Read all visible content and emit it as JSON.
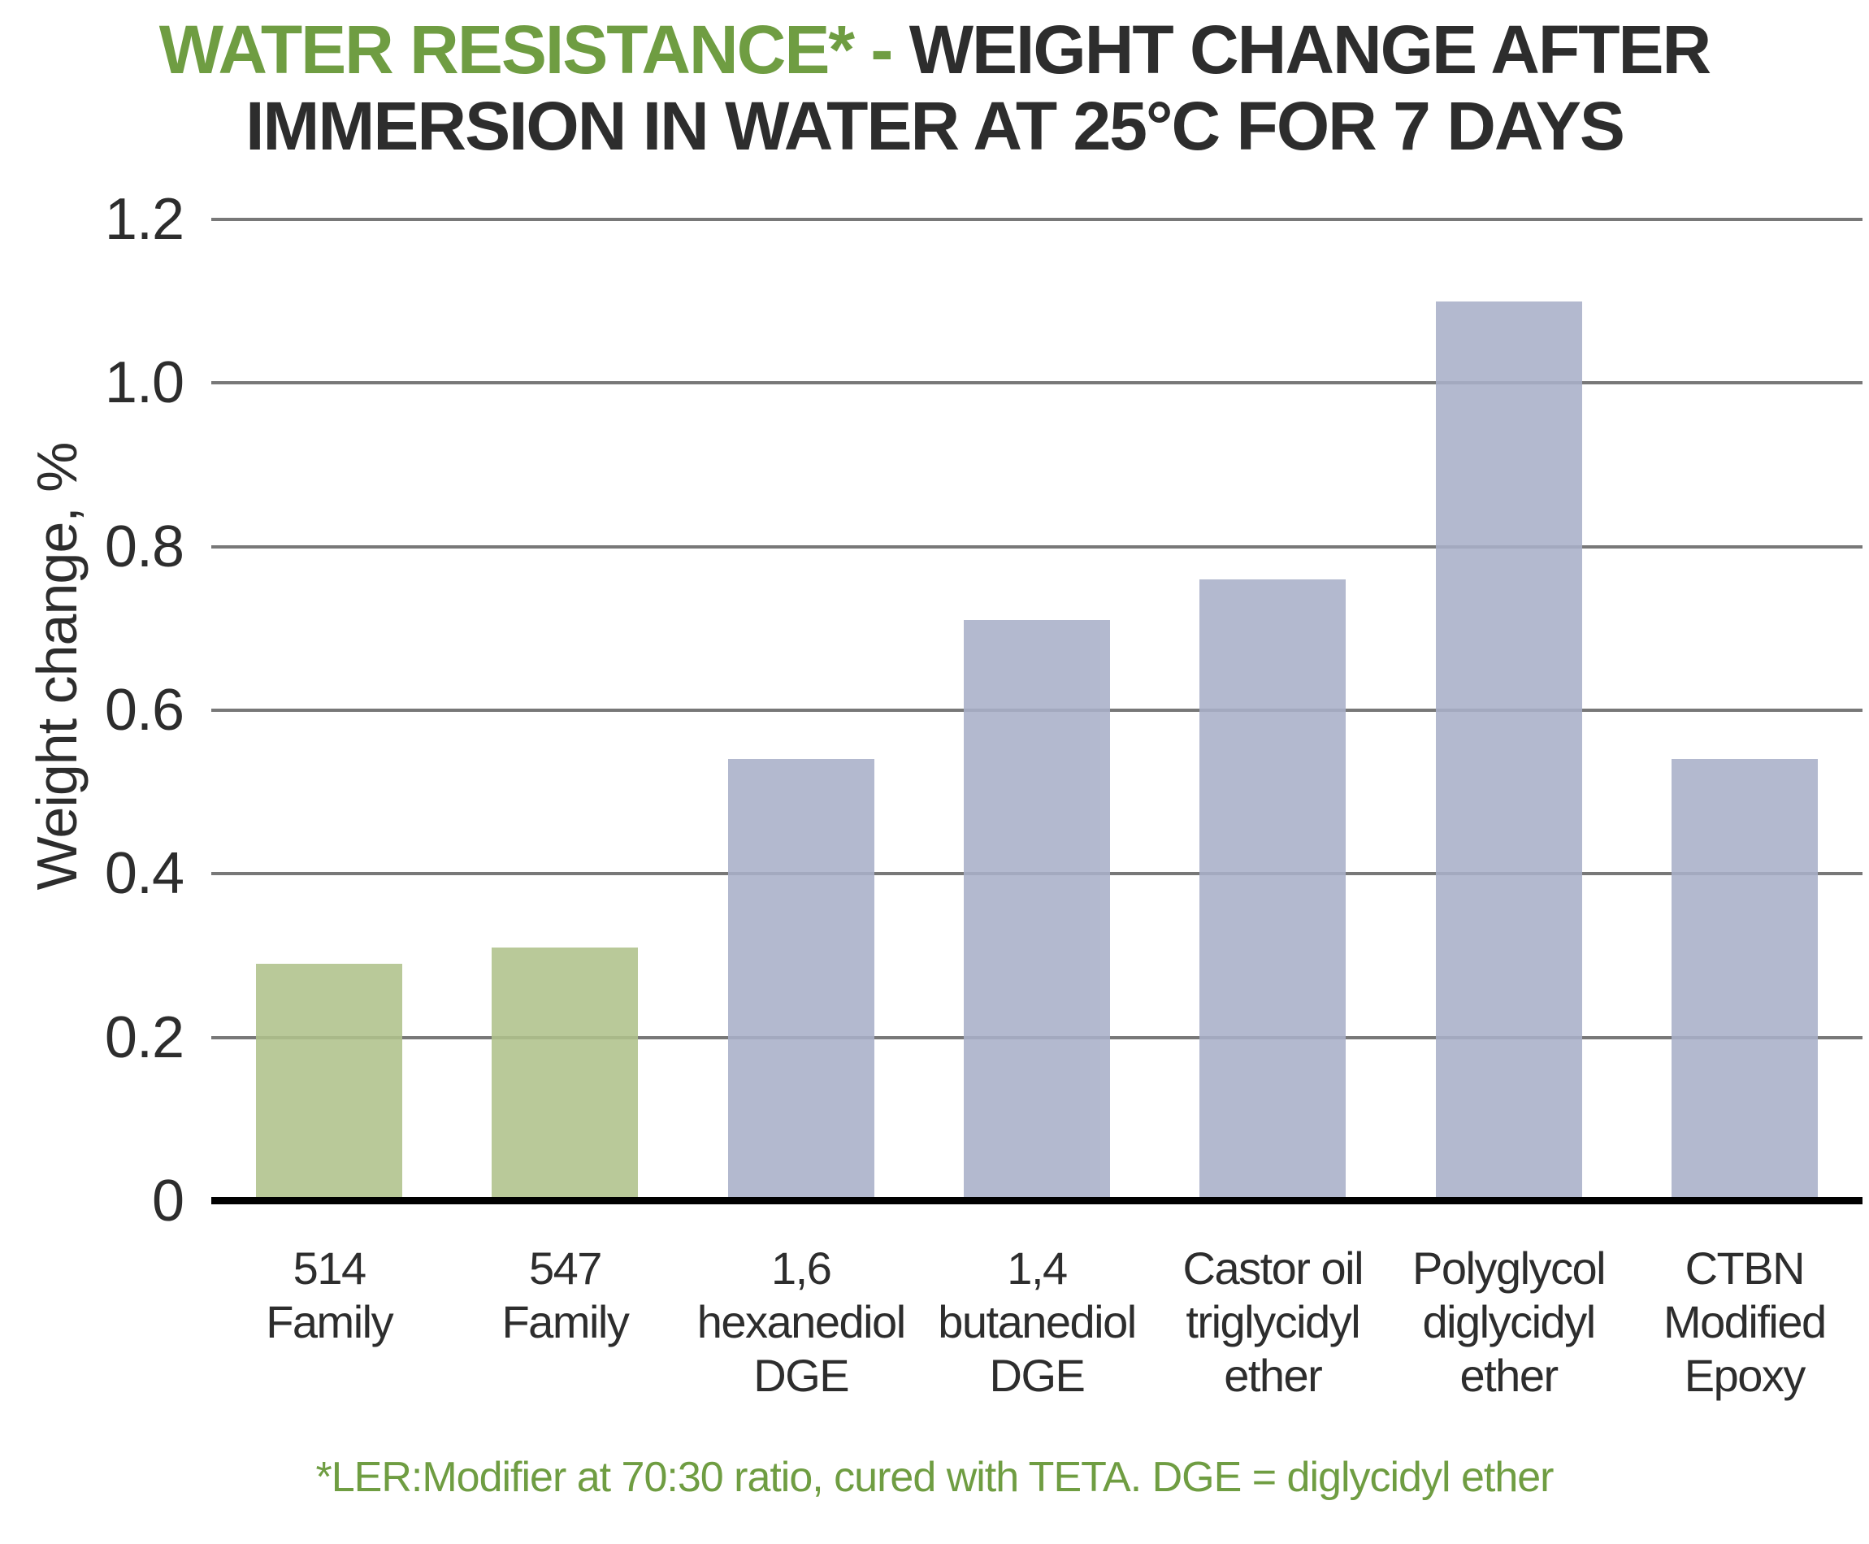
{
  "title": {
    "highlight": "WATER RESISTANCE* - ",
    "line1_rest": "WEIGHT CHANGE AFTER",
    "line2": "IMMERSION IN WATER AT 25°C FOR 7 DAYS",
    "highlight_color": "#6F9D42",
    "text_color": "#2D2D2D"
  },
  "chart_data": {
    "type": "bar",
    "title": "WATER RESISTANCE* - WEIGHT CHANGE AFTER IMMERSION IN WATER AT 25°C FOR 7 DAYS",
    "ylabel": "Weight change, %",
    "xlabel": "",
    "ylim": [
      0,
      1.2
    ],
    "yticks": [
      0,
      0.2,
      0.4,
      0.6,
      0.8,
      1.0,
      1.2
    ],
    "ytick_labels": [
      "0",
      "0.2",
      "0.4",
      "0.6",
      "0.8",
      "1.0",
      "1.2"
    ],
    "grid": "horizontal",
    "legend": "none",
    "categories": [
      "514\nFamily",
      "547\nFamily",
      "1,6\nhexanediol\nDGE",
      "1,4\nbutanediol\nDGE",
      "Castor oil\ntriglycidyl\nether",
      "Polyglycol\ndiglycidyl\nether",
      "CTBN\nModified\nEpoxy"
    ],
    "values": [
      0.29,
      0.31,
      0.54,
      0.71,
      0.76,
      1.1,
      0.54
    ],
    "bar_colors": [
      "#AFC28B",
      "#AFC28B",
      "#A9AFC8",
      "#A9AFC8",
      "#A9AFC8",
      "#A9AFC8",
      "#A9AFC8"
    ]
  },
  "footnote": {
    "text": "*LER:Modifier at 70:30 ratio, cured with TETA. DGE = diglycidyl ether",
    "color": "#6F9D42"
  },
  "colors": {
    "bar_green": "#AFC28B",
    "bar_purple": "#A9AFC8",
    "gridline": "#787878",
    "axis_line": "#000000",
    "accent_green_text": "#6F9D42",
    "title_text": "#2D2D2D"
  }
}
